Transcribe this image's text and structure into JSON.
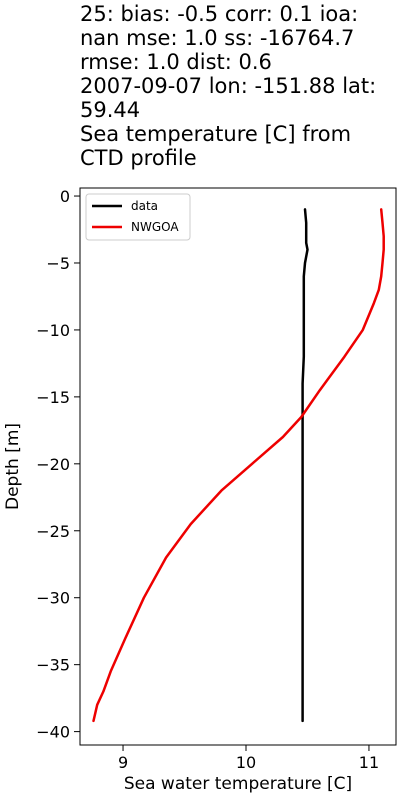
{
  "chart_data": {
    "type": "line",
    "title_lines": [
      "25: bias: -0.5  corr: 0.1  ioa:",
      "nan  mse: 1.0  ss: -16764.7",
      "rmse: 1.0  dist: 0.6",
      "2007-09-07 lon: -151.88 lat:",
      "59.44",
      "Sea temperature [C] from",
      "CTD profile"
    ],
    "xlabel": "Sea water temperature [C]",
    "ylabel": "Depth [m]",
    "xlim": [
      8.65,
      11.22
    ],
    "ylim": [
      -41.0,
      0.6
    ],
    "x_ticks": [
      9,
      10,
      11
    ],
    "x_tick_labels": [
      "9",
      "10",
      "11"
    ],
    "y_ticks": [
      0,
      -5,
      -10,
      -15,
      -20,
      -25,
      -30,
      -35,
      -40
    ],
    "y_tick_labels": [
      "0",
      "−5",
      "−10",
      "−15",
      "−20",
      "−25",
      "−30",
      "−35",
      "−40"
    ],
    "grid": false,
    "legend_position": "top-left",
    "series": [
      {
        "name": "data",
        "color": "#000000",
        "x": [
          10.48,
          10.49,
          10.49,
          10.5,
          10.48,
          10.47,
          10.47,
          10.47,
          10.47,
          10.47,
          10.46,
          10.46,
          10.46,
          10.46,
          10.46,
          10.46,
          10.46,
          10.46,
          10.46,
          10.46
        ],
        "y": [
          -1.0,
          -2.0,
          -3.5,
          -4.0,
          -5.0,
          -6.0,
          -7.0,
          -8.0,
          -10.0,
          -12.0,
          -14.0,
          -16.0,
          -18.0,
          -20.0,
          -24.0,
          -28.0,
          -32.0,
          -35.0,
          -38.0,
          -39.2
        ]
      },
      {
        "name": "NWGOA",
        "color": "#ee0000",
        "x": [
          11.1,
          11.11,
          11.12,
          11.12,
          11.11,
          11.1,
          11.08,
          11.04,
          10.95,
          10.8,
          10.6,
          10.45,
          10.3,
          10.05,
          9.8,
          9.55,
          9.35,
          9.17,
          9.02,
          8.9,
          8.84,
          8.79,
          8.76
        ],
        "y": [
          -1.0,
          -2.0,
          -3.0,
          -4.0,
          -5.0,
          -6.0,
          -7.0,
          -8.0,
          -10.0,
          -12.0,
          -14.5,
          -16.5,
          -18.0,
          -20.0,
          -22.0,
          -24.5,
          -27.0,
          -30.0,
          -33.0,
          -35.5,
          -37.0,
          -38.0,
          -39.2
        ]
      }
    ]
  }
}
